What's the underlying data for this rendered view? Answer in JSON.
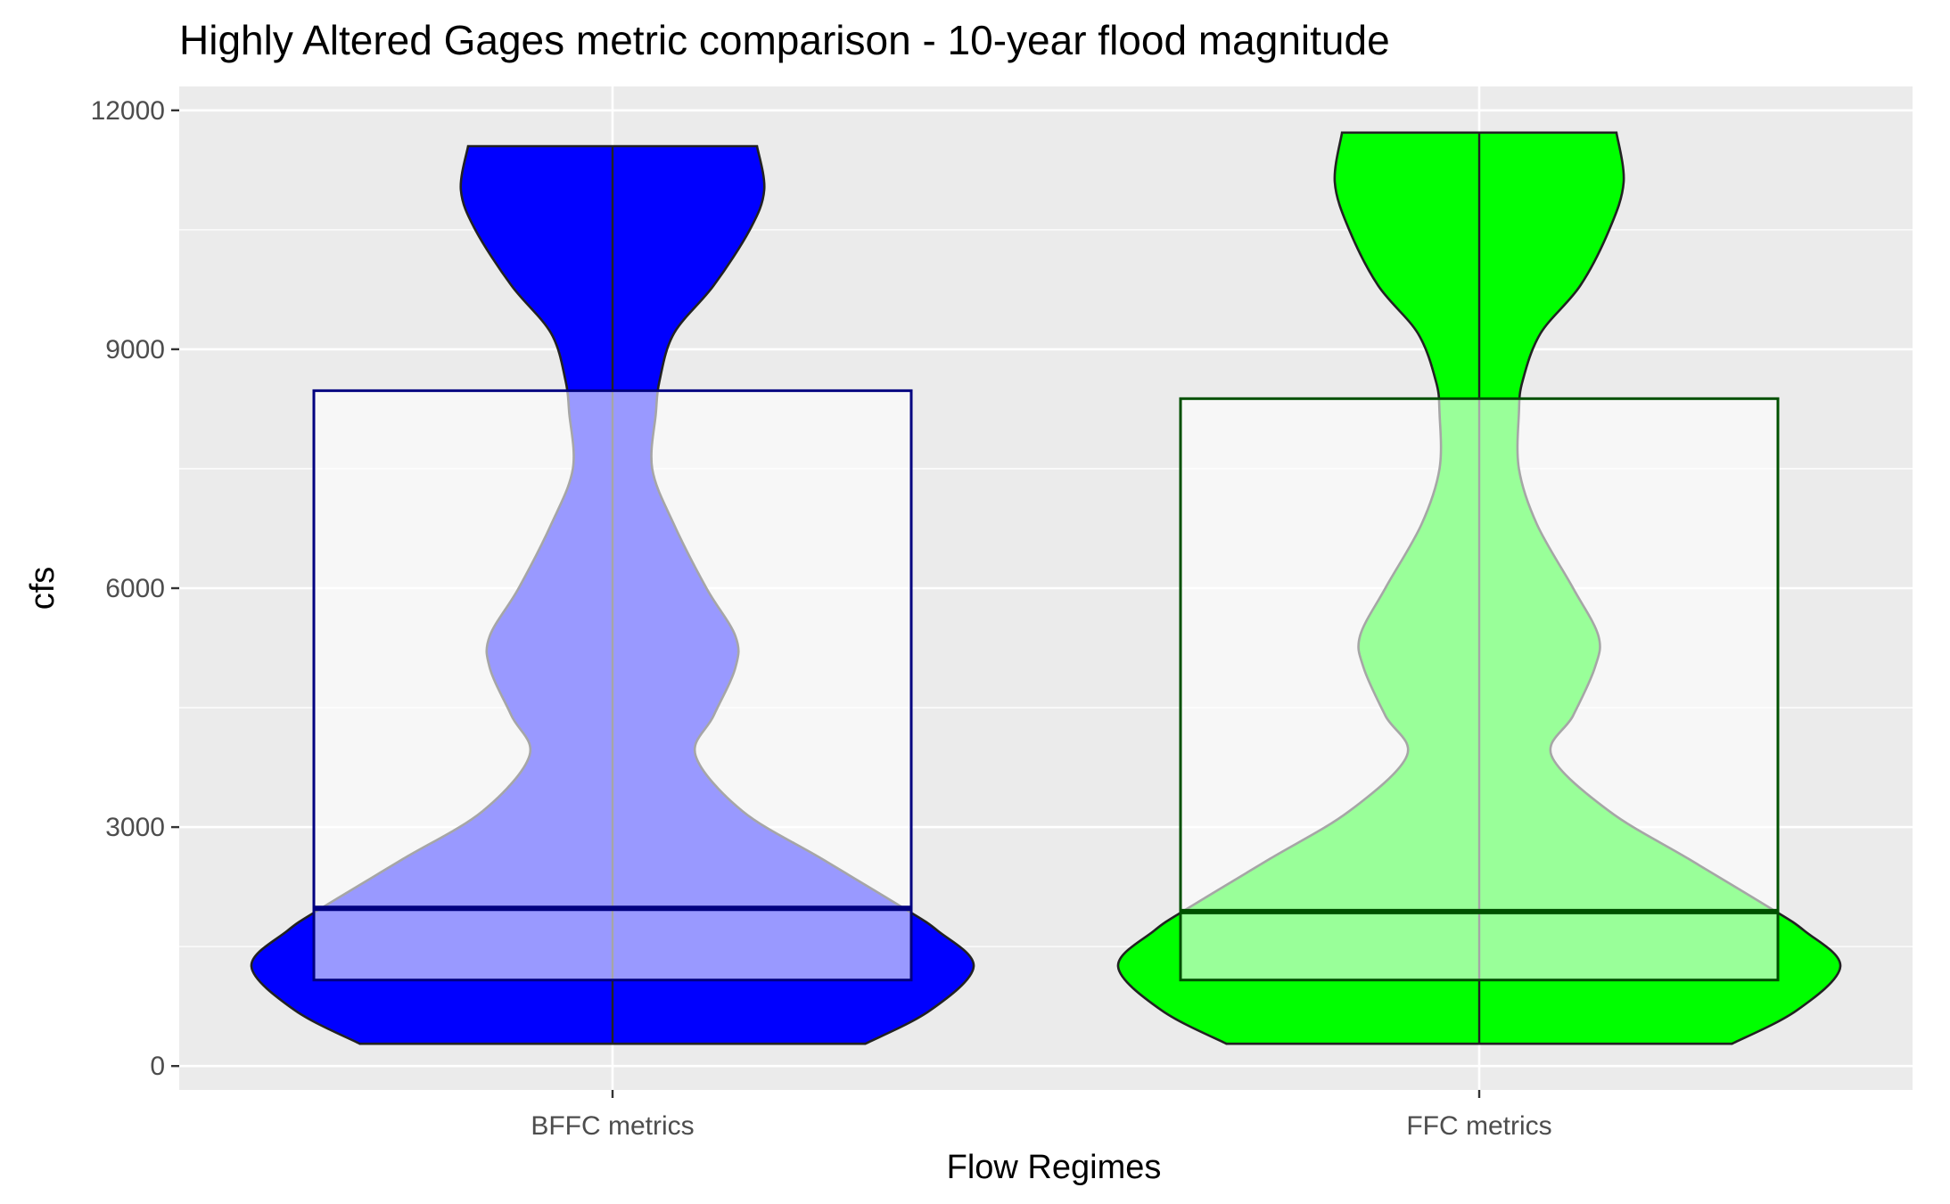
{
  "chart_data": {
    "type": "violin+box",
    "title": "Highly Altered Gages metric comparison - 10-year flood magnitude",
    "xlabel": "Flow Regimes",
    "ylabel": "cfs",
    "ylim": [
      -300,
      12300
    ],
    "yticks": [
      0,
      3000,
      6000,
      9000,
      12000
    ],
    "ytick_labels": [
      "0",
      "3000",
      "6000",
      "9000",
      "12000"
    ],
    "categories": [
      "BFFC metrics",
      "FFC metrics"
    ],
    "grid": true,
    "series": [
      {
        "category": "BFFC metrics",
        "fill": "#0000ff",
        "box_color": "#000080",
        "min": 280,
        "max": 11550,
        "box": {
          "q1": 1080,
          "median": 1980,
          "q3": 8480
        },
        "density_profile": [
          [
            280,
            0.7
          ],
          [
            700,
            0.88
          ],
          [
            1250,
            1.0
          ],
          [
            1700,
            0.9
          ],
          [
            2000,
            0.8
          ],
          [
            2600,
            0.58
          ],
          [
            3200,
            0.36
          ],
          [
            3900,
            0.23
          ],
          [
            4400,
            0.28
          ],
          [
            5000,
            0.34
          ],
          [
            5400,
            0.34
          ],
          [
            6000,
            0.26
          ],
          [
            6800,
            0.17
          ],
          [
            7500,
            0.11
          ],
          [
            8200,
            0.12
          ],
          [
            8600,
            0.13
          ],
          [
            9200,
            0.17
          ],
          [
            9800,
            0.28
          ],
          [
            10500,
            0.38
          ],
          [
            11000,
            0.42
          ],
          [
            11550,
            0.4
          ]
        ]
      },
      {
        "category": "FFC metrics",
        "fill": "#00ff00",
        "box_color": "#005000",
        "min": 280,
        "max": 11720,
        "box": {
          "q1": 1080,
          "median": 1940,
          "q3": 8380
        },
        "density_profile": [
          [
            280,
            0.7
          ],
          [
            700,
            0.88
          ],
          [
            1250,
            1.0
          ],
          [
            1700,
            0.9
          ],
          [
            2000,
            0.8
          ],
          [
            2600,
            0.58
          ],
          [
            3200,
            0.36
          ],
          [
            3900,
            0.2
          ],
          [
            4400,
            0.26
          ],
          [
            5000,
            0.32
          ],
          [
            5400,
            0.33
          ],
          [
            6000,
            0.26
          ],
          [
            6800,
            0.16
          ],
          [
            7500,
            0.11
          ],
          [
            8200,
            0.11
          ],
          [
            8600,
            0.12
          ],
          [
            9200,
            0.17
          ],
          [
            9800,
            0.28
          ],
          [
            10500,
            0.36
          ],
          [
            11100,
            0.4
          ],
          [
            11720,
            0.38
          ]
        ]
      }
    ]
  }
}
